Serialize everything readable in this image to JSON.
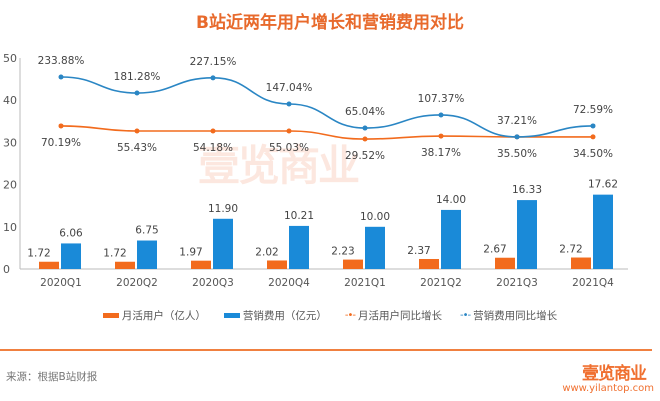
{
  "chart_data": {
    "type": "bar",
    "title": "B站近两年用户增长和营销费用对比",
    "categories": [
      "2020Q1",
      "2020Q2",
      "2020Q3",
      "2020Q4",
      "2021Q1",
      "2021Q2",
      "2021Q3",
      "2021Q4"
    ],
    "ylim": [
      0,
      50
    ],
    "yticks": [
      "0",
      "10",
      "20",
      "30",
      "40",
      "50"
    ],
    "series": [
      {
        "name": "月活用户（亿人）",
        "type": "bar",
        "color": "#f26b1d",
        "values": [
          1.72,
          1.72,
          1.97,
          2.02,
          2.23,
          2.37,
          2.67,
          2.72
        ],
        "labels": [
          "1.72",
          "1.72",
          "1.97",
          "2.02",
          "2.23",
          "2.37",
          "2.67",
          "2.72"
        ]
      },
      {
        "name": "营销费用（亿元）",
        "type": "bar",
        "color": "#1a8ad8",
        "values": [
          6.06,
          6.75,
          11.9,
          10.21,
          10.0,
          14.0,
          16.33,
          17.62
        ],
        "labels": [
          "6.06",
          "6.75",
          "11.90",
          "10.21",
          "10.00",
          "14.00",
          "16.33",
          "17.62"
        ]
      },
      {
        "name": "月活用户同比增长",
        "type": "line",
        "color": "#f26b1d",
        "plot_values": [
          33.9,
          32.7,
          32.7,
          32.7,
          30.8,
          31.5,
          31.3,
          31.3
        ],
        "labels": [
          "70.19%",
          "55.43%",
          "54.18%",
          "55.03%",
          "29.52%",
          "38.17%",
          "35.50%",
          "34.50%"
        ]
      },
      {
        "name": "营销费用同比增长",
        "type": "line",
        "color": "#2a86c4",
        "plot_values": [
          45.5,
          41.7,
          45.3,
          39.1,
          33.4,
          36.5,
          31.3,
          33.9
        ],
        "labels": [
          "233.88%",
          "181.28%",
          "227.15%",
          "147.04%",
          "65.04%",
          "107.37%",
          "37.21%",
          "72.59%"
        ]
      }
    ]
  },
  "legend": {
    "mau": "月活用户（亿人）",
    "mkt": "营销费用（亿元）",
    "mau_growth": "月活用户同比增长",
    "mkt_growth": "营销费用同比增长",
    "line_marker": "-•-"
  },
  "footer": {
    "source": "来源：根据B站财报",
    "logo": "壹览商业",
    "url": "www.yilantop.com"
  },
  "watermark": "壹览商业"
}
